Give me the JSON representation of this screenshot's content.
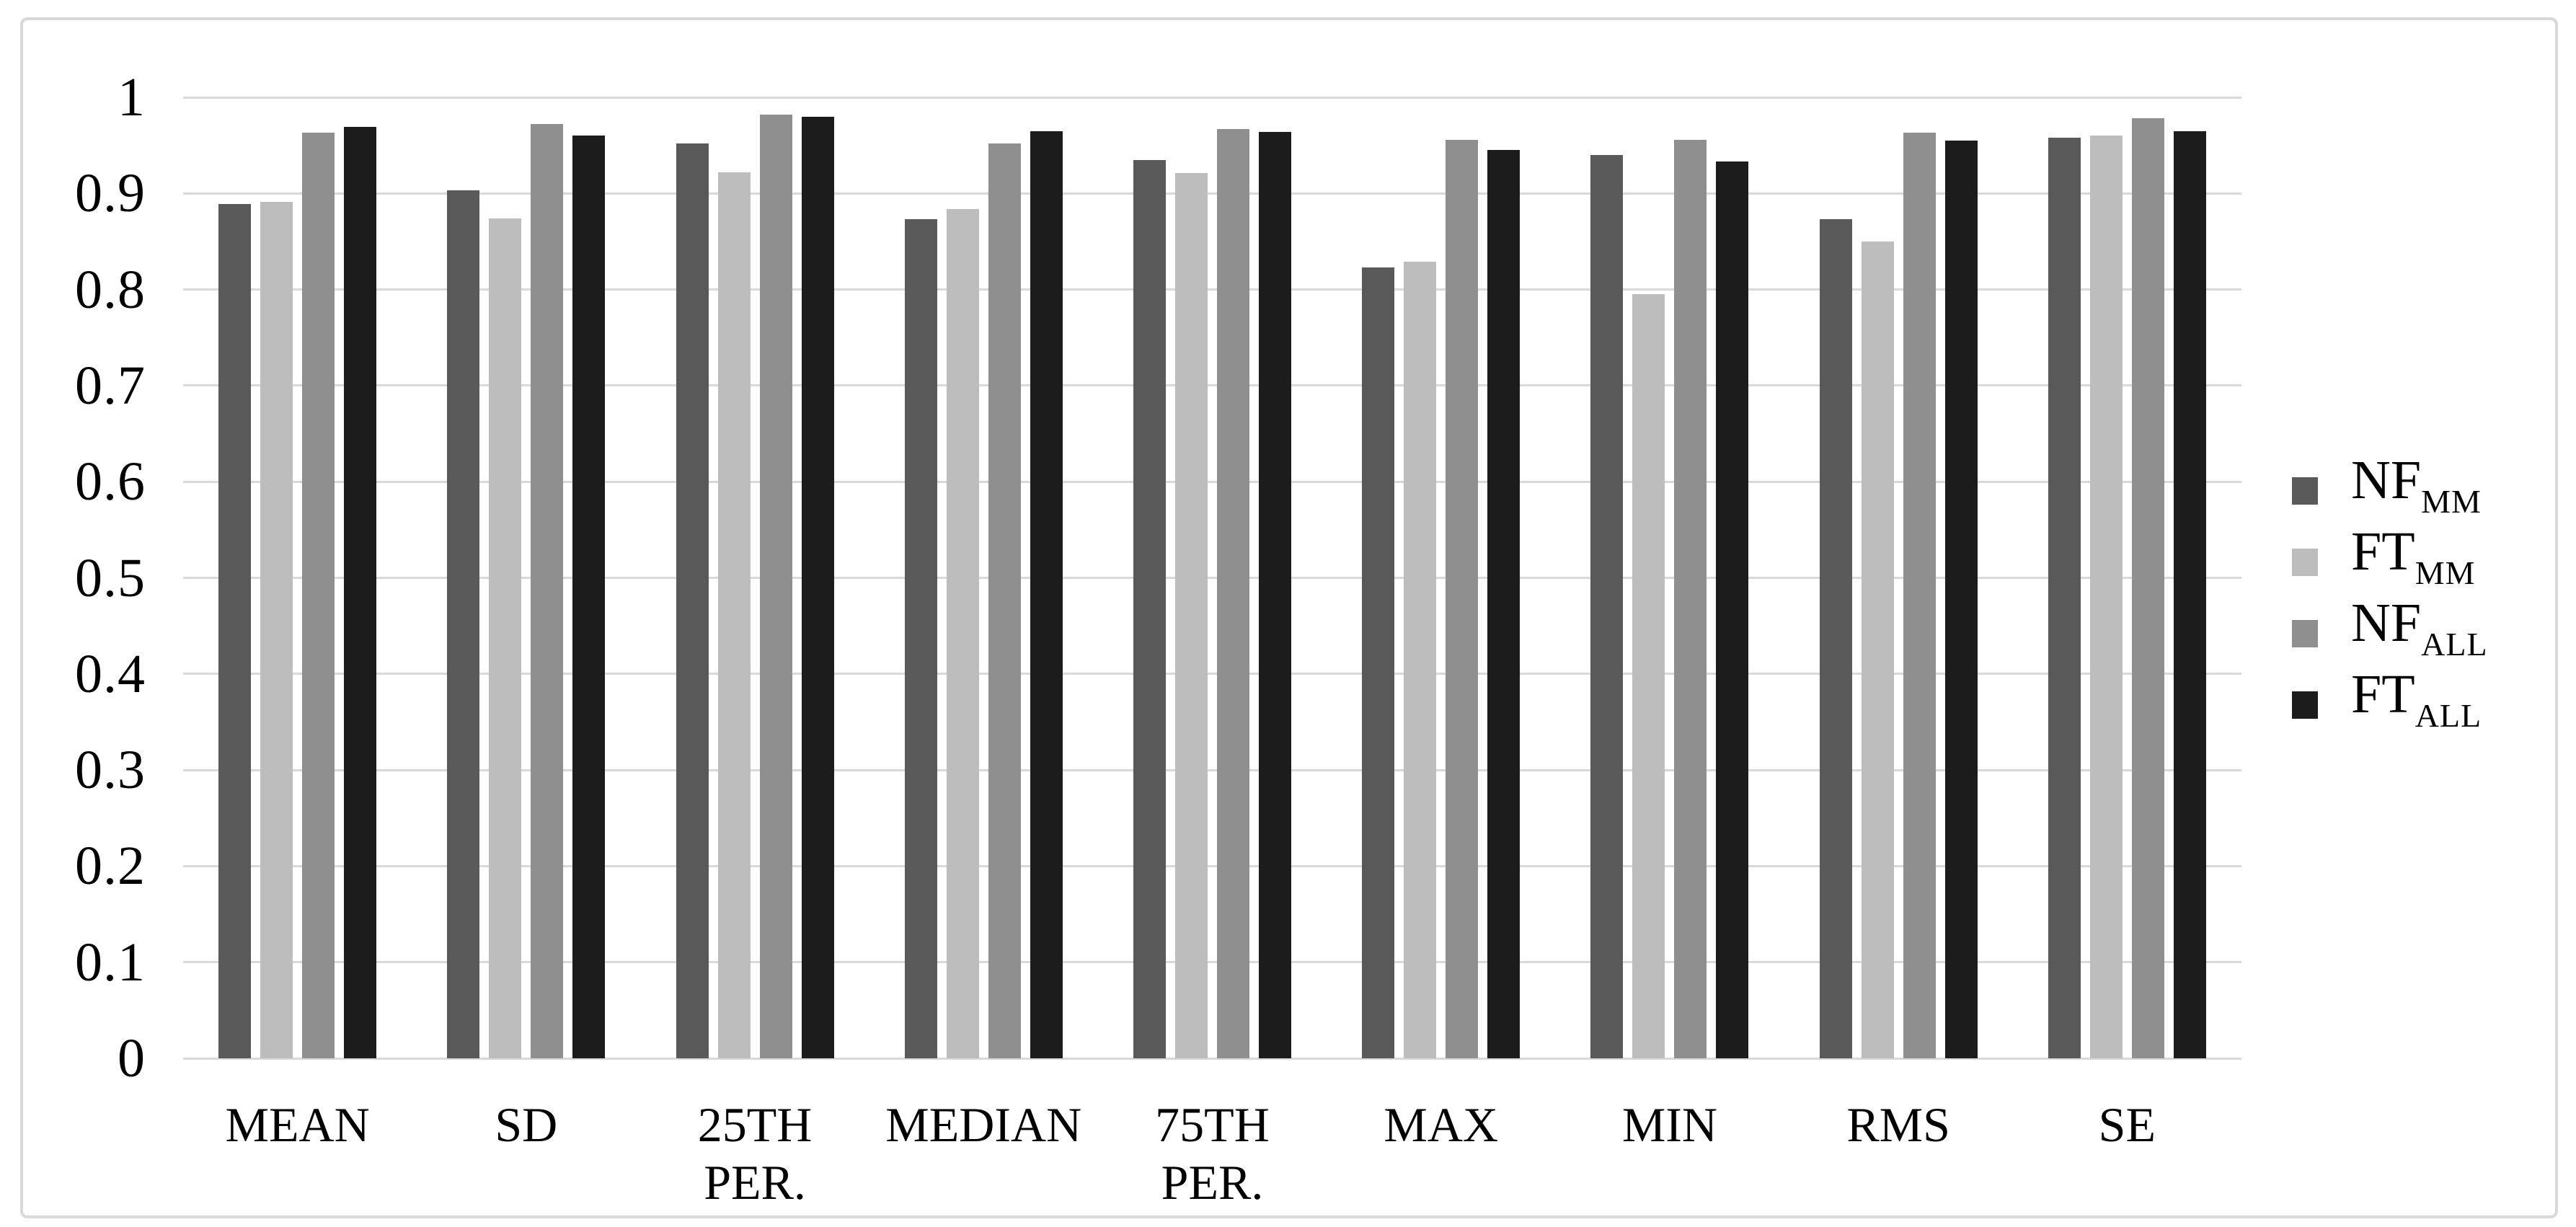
{
  "figure": {
    "background": "#ffffff",
    "border_color": "#d9d9d9",
    "gridline_color": "#d9d9d9",
    "text_color": "#000000"
  },
  "chart_data": {
    "type": "bar",
    "title": "",
    "xlabel": "",
    "ylabel": "",
    "categories": [
      "MEAN",
      "SD",
      "25TH\nPER.",
      "MEDIAN",
      "75TH\nPER.",
      "MAX",
      "MIN",
      "RMS",
      "SE"
    ],
    "series": [
      {
        "name": "NF",
        "sub": "MM",
        "color": "#595959",
        "values": [
          0.889,
          0.903,
          0.952,
          0.873,
          0.935,
          0.823,
          0.94,
          0.873,
          0.958
        ]
      },
      {
        "name": "FT",
        "sub": "MM",
        "color": "#bdbdbd",
        "values": [
          0.891,
          0.874,
          0.922,
          0.884,
          0.921,
          0.829,
          0.795,
          0.85,
          0.96
        ]
      },
      {
        "name": "NF",
        "sub": "ALL",
        "color": "#8f8f8f",
        "values": [
          0.963,
          0.972,
          0.982,
          0.952,
          0.967,
          0.956,
          0.956,
          0.963,
          0.978
        ]
      },
      {
        "name": "FT",
        "sub": "ALL",
        "color": "#1c1c1c",
        "values": [
          0.969,
          0.96,
          0.98,
          0.965,
          0.964,
          0.945,
          0.933,
          0.955,
          0.965
        ]
      }
    ],
    "y_ticks": [
      "1",
      "0.9",
      "0.8",
      "0.7",
      "0.6",
      "0.5",
      "0.4",
      "0.3",
      "0.2",
      "0.1",
      "0"
    ],
    "ylim": [
      0,
      1
    ],
    "grid": true,
    "gridline_step": 0.1,
    "legend_position": "right",
    "bar_background": "#ffffff"
  }
}
